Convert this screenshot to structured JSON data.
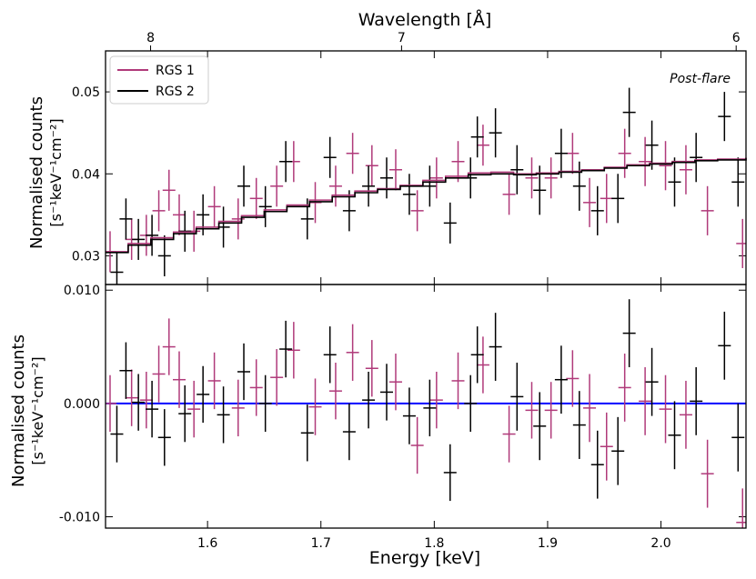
{
  "figure": {
    "top_axis_label": "Wavelength [Å]",
    "top_ticks": [
      "8",
      "7",
      "6"
    ],
    "top_tick_wavelengths": [
      8,
      7,
      6
    ],
    "annotation": "Post-flare",
    "colors": {
      "rgs1": "#b03a7a",
      "rgs2": "#000000",
      "zero_line": "#0000ff",
      "annotation": "#0000ff"
    }
  },
  "chart_data": [
    {
      "type": "scatter",
      "panel": "top",
      "ylabel_line1": "Normalised counts",
      "ylabel_line2": "[s⁻¹keV⁻¹cm⁻²]",
      "xlim": [
        1.51,
        2.075
      ],
      "ylim": [
        0.0265,
        0.055
      ],
      "yticks": [
        0.03,
        0.04,
        0.05
      ],
      "ytick_labels": [
        "0.03",
        "0.04",
        "0.05"
      ],
      "legend": [
        "RGS 1",
        "RGS 2"
      ],
      "legend_position": "top-left",
      "series": [
        {
          "name": "RGS 1",
          "x": [
            1.514,
            1.533,
            1.546,
            1.557,
            1.566,
            1.575,
            1.588,
            1.606,
            1.627,
            1.643,
            1.661,
            1.676,
            1.695,
            1.713,
            1.728,
            1.745,
            1.766,
            1.785,
            1.802,
            1.821,
            1.843,
            1.866,
            1.886,
            1.903,
            1.922,
            1.937,
            1.952,
            1.968,
            1.986,
            2.004,
            2.022,
            2.041,
            2.072
          ],
          "y": [
            0.0305,
            0.032,
            0.0325,
            0.0355,
            0.038,
            0.035,
            0.033,
            0.036,
            0.0345,
            0.037,
            0.0385,
            0.0415,
            0.0365,
            0.0385,
            0.0425,
            0.041,
            0.0405,
            0.0355,
            0.0395,
            0.0415,
            0.0435,
            0.0375,
            0.0395,
            0.0395,
            0.0425,
            0.0365,
            0.037,
            0.0425,
            0.0415,
            0.041,
            0.0405,
            0.0355,
            0.0315
          ],
          "yerr": [
            0.0025,
            0.0025,
            0.0025,
            0.0025,
            0.0025,
            0.0025,
            0.0025,
            0.0025,
            0.0025,
            0.0025,
            0.0025,
            0.0025,
            0.0025,
            0.0025,
            0.0025,
            0.0025,
            0.0025,
            0.0025,
            0.0025,
            0.0025,
            0.0025,
            0.0025,
            0.0025,
            0.0025,
            0.0025,
            0.003,
            0.003,
            0.003,
            0.003,
            0.003,
            0.003,
            0.003,
            0.003
          ]
        },
        {
          "name": "RGS 2",
          "x": [
            1.52,
            1.528,
            1.539,
            1.551,
            1.562,
            1.58,
            1.596,
            1.614,
            1.632,
            1.651,
            1.669,
            1.688,
            1.708,
            1.725,
            1.742,
            1.758,
            1.778,
            1.796,
            1.814,
            1.832,
            1.838,
            1.854,
            1.873,
            1.893,
            1.912,
            1.928,
            1.944,
            1.962,
            1.972,
            1.992,
            2.012,
            2.031,
            2.056,
            2.068
          ],
          "y": [
            0.028,
            0.0345,
            0.032,
            0.0325,
            0.03,
            0.033,
            0.035,
            0.0335,
            0.0385,
            0.036,
            0.0415,
            0.0345,
            0.042,
            0.0355,
            0.0385,
            0.0395,
            0.0375,
            0.0385,
            0.034,
            0.0395,
            0.0445,
            0.045,
            0.0405,
            0.038,
            0.0425,
            0.0385,
            0.0355,
            0.037,
            0.0475,
            0.0435,
            0.039,
            0.042,
            0.047,
            0.039
          ],
          "yerr": [
            0.0025,
            0.0025,
            0.0025,
            0.0025,
            0.0025,
            0.0025,
            0.0025,
            0.0025,
            0.0025,
            0.0025,
            0.0025,
            0.0025,
            0.0025,
            0.0025,
            0.0025,
            0.0025,
            0.0025,
            0.0025,
            0.0025,
            0.0025,
            0.0025,
            0.003,
            0.003,
            0.003,
            0.003,
            0.003,
            0.003,
            0.003,
            0.003,
            0.003,
            0.003,
            0.003,
            0.003,
            0.003
          ]
        },
        {
          "name": "RGS 1 model",
          "x": [
            1.51,
            1.53,
            1.55,
            1.57,
            1.59,
            1.61,
            1.63,
            1.65,
            1.67,
            1.69,
            1.71,
            1.73,
            1.75,
            1.77,
            1.79,
            1.81,
            1.83,
            1.85,
            1.87,
            1.89,
            1.91,
            1.93,
            1.95,
            1.97,
            1.99,
            2.01,
            2.03,
            2.05,
            2.075
          ],
          "y": [
            0.0305,
            0.0315,
            0.0322,
            0.0329,
            0.0335,
            0.0342,
            0.0349,
            0.0356,
            0.0362,
            0.0368,
            0.0374,
            0.0379,
            0.0382,
            0.0386,
            0.0392,
            0.0397,
            0.0401,
            0.0402,
            0.04,
            0.0401,
            0.0403,
            0.0405,
            0.0408,
            0.0411,
            0.0413,
            0.0415,
            0.0417,
            0.0418,
            0.042
          ]
        },
        {
          "name": "RGS 2 model",
          "x": [
            1.51,
            1.53,
            1.55,
            1.57,
            1.59,
            1.61,
            1.63,
            1.65,
            1.67,
            1.69,
            1.71,
            1.73,
            1.75,
            1.77,
            1.79,
            1.81,
            1.83,
            1.85,
            1.87,
            1.89,
            1.91,
            1.93,
            1.95,
            1.97,
            1.99,
            2.01,
            2.03,
            2.05,
            2.075
          ],
          "y": [
            0.0304,
            0.0313,
            0.032,
            0.0327,
            0.0333,
            0.034,
            0.0347,
            0.0354,
            0.036,
            0.0366,
            0.0372,
            0.0377,
            0.0381,
            0.0385,
            0.039,
            0.0395,
            0.0399,
            0.04,
            0.0399,
            0.04,
            0.0402,
            0.0404,
            0.0407,
            0.041,
            0.0412,
            0.0414,
            0.0416,
            0.0417,
            0.0419
          ]
        }
      ]
    },
    {
      "type": "scatter",
      "panel": "bottom",
      "xlabel": "Energy [keV]",
      "ylabel_line1": "Normalised counts",
      "ylabel_line2": "[s⁻¹keV⁻¹cm⁻²]",
      "xlim": [
        1.51,
        2.075
      ],
      "ylim": [
        -0.011,
        0.0105
      ],
      "xticks": [
        1.6,
        1.7,
        1.8,
        1.9,
        2.0
      ],
      "xtick_labels": [
        "1.6",
        "1.7",
        "1.8",
        "1.9",
        "2.0"
      ],
      "yticks": [
        -0.01,
        0.0,
        0.01
      ],
      "ytick_labels": [
        "-0.010",
        "0.000",
        "0.010"
      ],
      "zero_line": 0,
      "series": [
        {
          "name": "RGS 1",
          "x": [
            1.514,
            1.533,
            1.546,
            1.557,
            1.566,
            1.575,
            1.588,
            1.606,
            1.627,
            1.643,
            1.661,
            1.676,
            1.695,
            1.713,
            1.728,
            1.745,
            1.766,
            1.785,
            1.802,
            1.821,
            1.843,
            1.866,
            1.886,
            1.903,
            1.922,
            1.937,
            1.952,
            1.968,
            1.986,
            2.004,
            2.022,
            2.041,
            2.072
          ],
          "y": [
            0.0,
            0.0005,
            0.0003,
            0.0026,
            0.005,
            0.0021,
            -0.0005,
            0.002,
            -0.0004,
            0.0014,
            0.0023,
            0.0047,
            -0.0003,
            0.0011,
            0.0045,
            0.0031,
            0.0019,
            -0.0037,
            0.0003,
            0.002,
            0.0034,
            -0.0027,
            -0.0006,
            -0.0006,
            0.0022,
            -0.0004,
            -0.0038,
            0.0014,
            0.0002,
            -0.0005,
            -0.001,
            -0.0062,
            -0.0105
          ],
          "yerr": [
            0.0025,
            0.0025,
            0.0025,
            0.0025,
            0.0025,
            0.0025,
            0.0025,
            0.0025,
            0.0025,
            0.0025,
            0.0025,
            0.0025,
            0.0025,
            0.0025,
            0.0025,
            0.0025,
            0.0025,
            0.0025,
            0.0025,
            0.0025,
            0.0025,
            0.0025,
            0.0025,
            0.0025,
            0.0025,
            0.003,
            0.003,
            0.003,
            0.003,
            0.003,
            0.003,
            0.003,
            0.003
          ]
        },
        {
          "name": "RGS 2",
          "x": [
            1.52,
            1.528,
            1.539,
            1.551,
            1.562,
            1.58,
            1.596,
            1.614,
            1.632,
            1.651,
            1.669,
            1.688,
            1.708,
            1.725,
            1.742,
            1.758,
            1.778,
            1.796,
            1.814,
            1.832,
            1.838,
            1.854,
            1.873,
            1.893,
            1.912,
            1.928,
            1.944,
            1.962,
            1.972,
            1.992,
            2.012,
            2.031,
            2.056,
            2.068
          ],
          "y": [
            -0.0027,
            0.0029,
            0.0001,
            -0.0005,
            -0.003,
            -0.0009,
            0.0008,
            -0.001,
            0.0028,
            0.0,
            0.0048,
            -0.0026,
            0.0043,
            -0.0025,
            0.0003,
            0.001,
            -0.0011,
            -0.0004,
            -0.0061,
            0.0,
            0.0043,
            0.005,
            0.0006,
            -0.002,
            0.0021,
            -0.0019,
            -0.0054,
            -0.0042,
            0.0062,
            0.0019,
            -0.0028,
            0.0002,
            0.0051,
            -0.003
          ],
          "yerr": [
            0.0025,
            0.0025,
            0.0025,
            0.0025,
            0.0025,
            0.0025,
            0.0025,
            0.0025,
            0.0025,
            0.0025,
            0.0025,
            0.0025,
            0.0025,
            0.0025,
            0.0025,
            0.0025,
            0.0025,
            0.0025,
            0.0025,
            0.0025,
            0.0025,
            0.003,
            0.003,
            0.003,
            0.003,
            0.003,
            0.003,
            0.003,
            0.003,
            0.003,
            0.003,
            0.003,
            0.003,
            0.003
          ]
        }
      ]
    }
  ]
}
